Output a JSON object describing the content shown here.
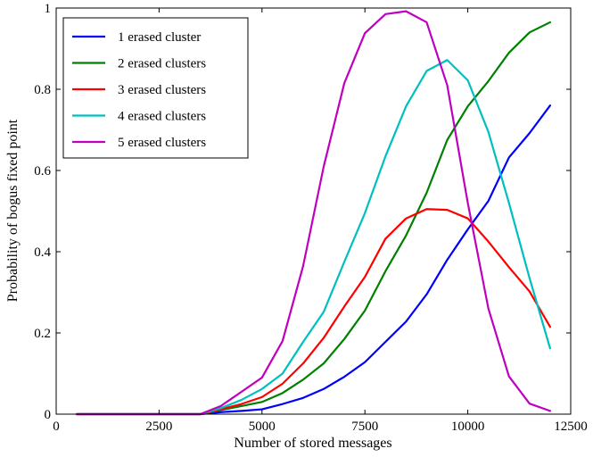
{
  "chart_data": {
    "type": "line",
    "title": "",
    "xlabel": "Number of stored messages",
    "ylabel": "Probability of bogus fixed point",
    "xlim": [
      0,
      12500
    ],
    "ylim": [
      0,
      1
    ],
    "xticks": [
      0,
      2500,
      5000,
      7500,
      10000,
      12500
    ],
    "yticks": [
      0,
      0.2,
      0.4,
      0.6,
      0.8,
      1
    ],
    "xtick_labels": [
      "0",
      "2500",
      "5000",
      "7500",
      "10000",
      "12500"
    ],
    "ytick_labels": [
      "0",
      "0.2",
      "0.4",
      "0.6",
      "0.8",
      "1"
    ],
    "grid": false,
    "legend_position": "top-left",
    "x": [
      500,
      1000,
      1500,
      2000,
      2500,
      3000,
      3500,
      4000,
      4500,
      5000,
      5500,
      6000,
      6500,
      7000,
      7500,
      8000,
      8500,
      9000,
      9500,
      10000,
      10500,
      11000,
      11500,
      12000
    ],
    "series": [
      {
        "name": "1 erased cluster",
        "color": "#0000ff",
        "values": [
          0,
          0,
          0,
          0,
          0,
          0,
          0,
          0.005,
          0.008,
          0.012,
          0.025,
          0.04,
          0.062,
          0.092,
          0.128,
          0.178,
          0.228,
          0.295,
          0.38,
          0.455,
          0.525,
          0.632,
          0.692,
          0.76
        ]
      },
      {
        "name": "2 erased clusters",
        "color": "#008000",
        "values": [
          0,
          0,
          0,
          0,
          0,
          0,
          0,
          0.01,
          0.02,
          0.03,
          0.052,
          0.085,
          0.125,
          0.185,
          0.255,
          0.352,
          0.44,
          0.545,
          0.675,
          0.758,
          0.82,
          0.89,
          0.94,
          0.965
        ]
      },
      {
        "name": "3 erased clusters",
        "color": "#ff0000",
        "values": [
          0,
          0,
          0,
          0,
          0,
          0,
          0,
          0.012,
          0.025,
          0.042,
          0.075,
          0.125,
          0.188,
          0.265,
          0.338,
          0.432,
          0.482,
          0.505,
          0.503,
          0.482,
          0.425,
          0.362,
          0.302,
          0.215
        ]
      },
      {
        "name": "4 erased clusters",
        "color": "#00bfbf",
        "values": [
          0,
          0,
          0,
          0,
          0,
          0,
          0,
          0.015,
          0.035,
          0.062,
          0.1,
          0.178,
          0.252,
          0.375,
          0.495,
          0.635,
          0.758,
          0.845,
          0.872,
          0.822,
          0.695,
          0.52,
          0.335,
          0.162
        ]
      },
      {
        "name": "5 erased clusters",
        "color": "#bf00bf",
        "values": [
          0,
          0,
          0,
          0,
          0,
          0,
          0,
          0.02,
          0.055,
          0.09,
          0.18,
          0.365,
          0.61,
          0.815,
          0.938,
          0.985,
          0.992,
          0.965,
          0.81,
          0.52,
          0.26,
          0.093,
          0.026,
          0.008
        ]
      }
    ]
  }
}
